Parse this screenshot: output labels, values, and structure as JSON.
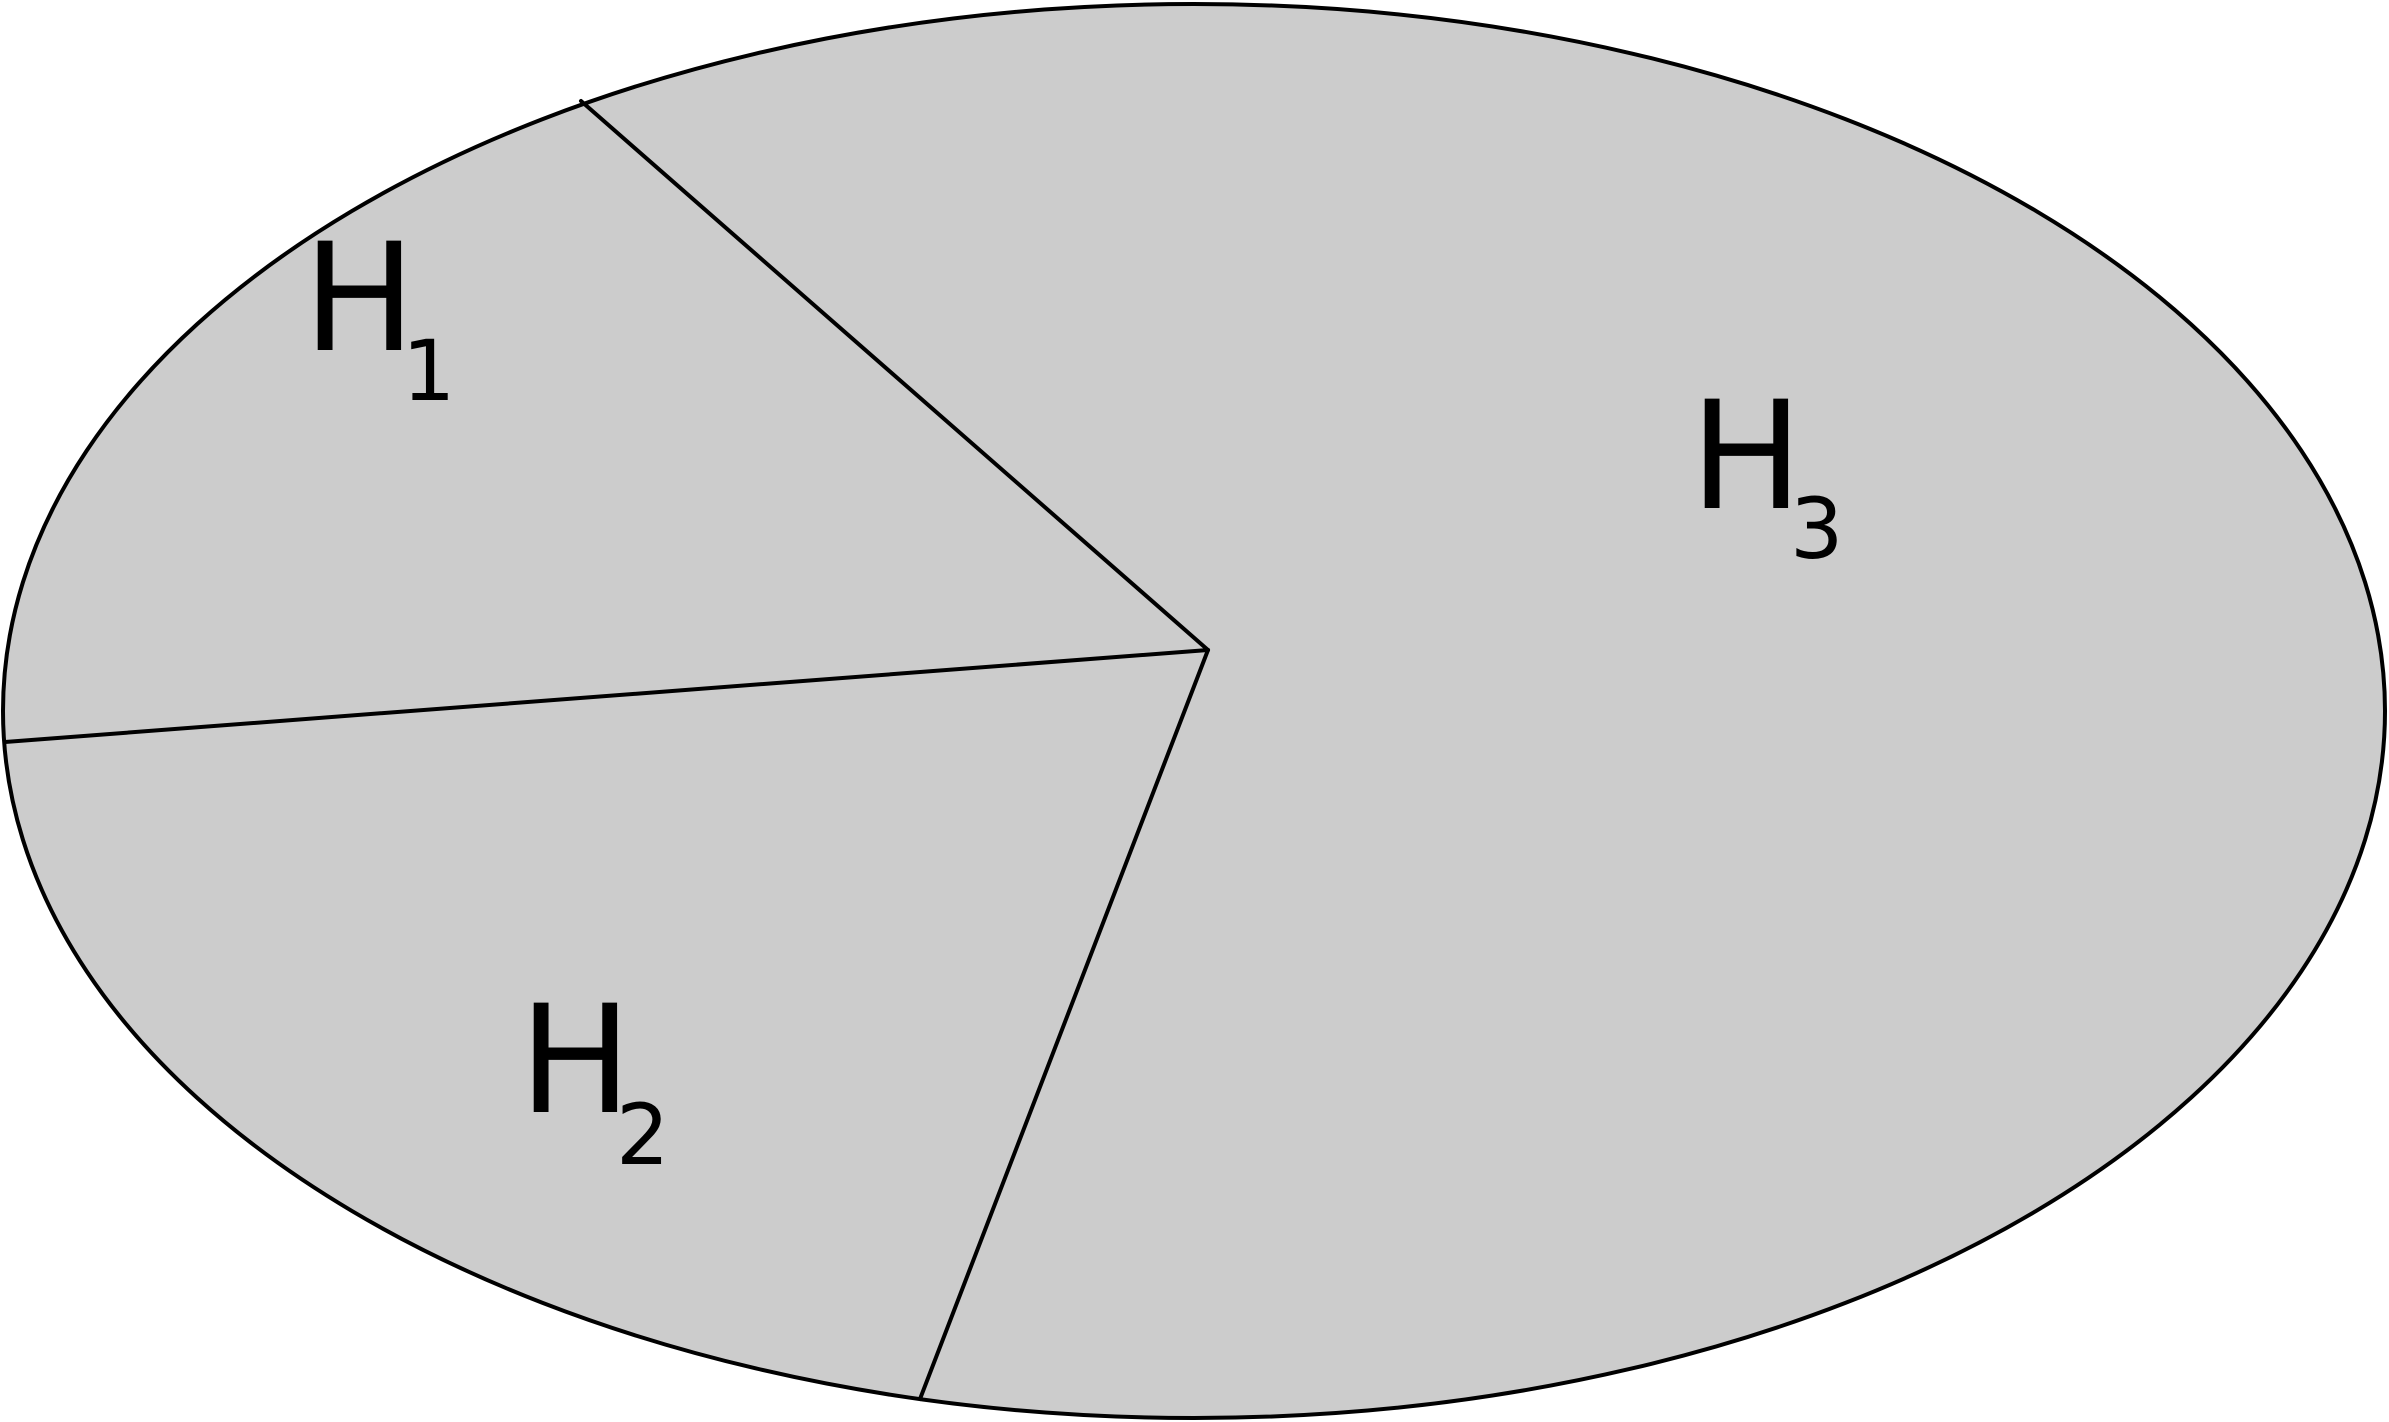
{
  "diagram": {
    "fill_color": "#cccccc",
    "stroke_color": "#000000",
    "regions": [
      {
        "id": "H1",
        "letter": "H",
        "subscript": "1"
      },
      {
        "id": "H2",
        "letter": "H",
        "subscript": "2"
      },
      {
        "id": "H3",
        "letter": "H",
        "subscript": "3"
      }
    ]
  }
}
